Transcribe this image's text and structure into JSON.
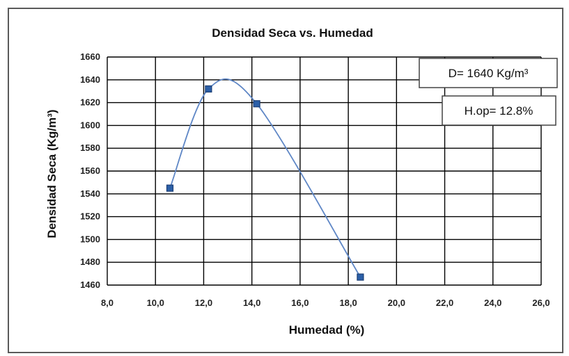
{
  "chart_data": {
    "type": "scatter",
    "title": "Densidad Seca vs. Humedad",
    "xlabel": "Humedad (%)",
    "ylabel": "Densidad Seca (Kg/m³)",
    "xlim": [
      8,
      26
    ],
    "ylim": [
      1460,
      1660
    ],
    "x_ticks": [
      "8,0",
      "10,0",
      "12,0",
      "14,0",
      "16,0",
      "18,0",
      "20,0",
      "22,0",
      "24,0",
      "26,0"
    ],
    "y_ticks": [
      "1460",
      "1480",
      "1500",
      "1520",
      "1540",
      "1560",
      "1580",
      "1600",
      "1620",
      "1640",
      "1660"
    ],
    "grid": true,
    "points": [
      {
        "x": 10.6,
        "y": 1545
      },
      {
        "x": 12.2,
        "y": 1632
      },
      {
        "x": 14.2,
        "y": 1619
      },
      {
        "x": 18.5,
        "y": 1467
      }
    ],
    "trendline": "polynomial",
    "annotations": [
      {
        "text": "D= 1640 Kg/m³"
      },
      {
        "text": "H.op= 12.8%"
      }
    ],
    "colors": {
      "marker": "#2b5fa8",
      "line": "#5f87c6",
      "grid": "#000000"
    }
  }
}
